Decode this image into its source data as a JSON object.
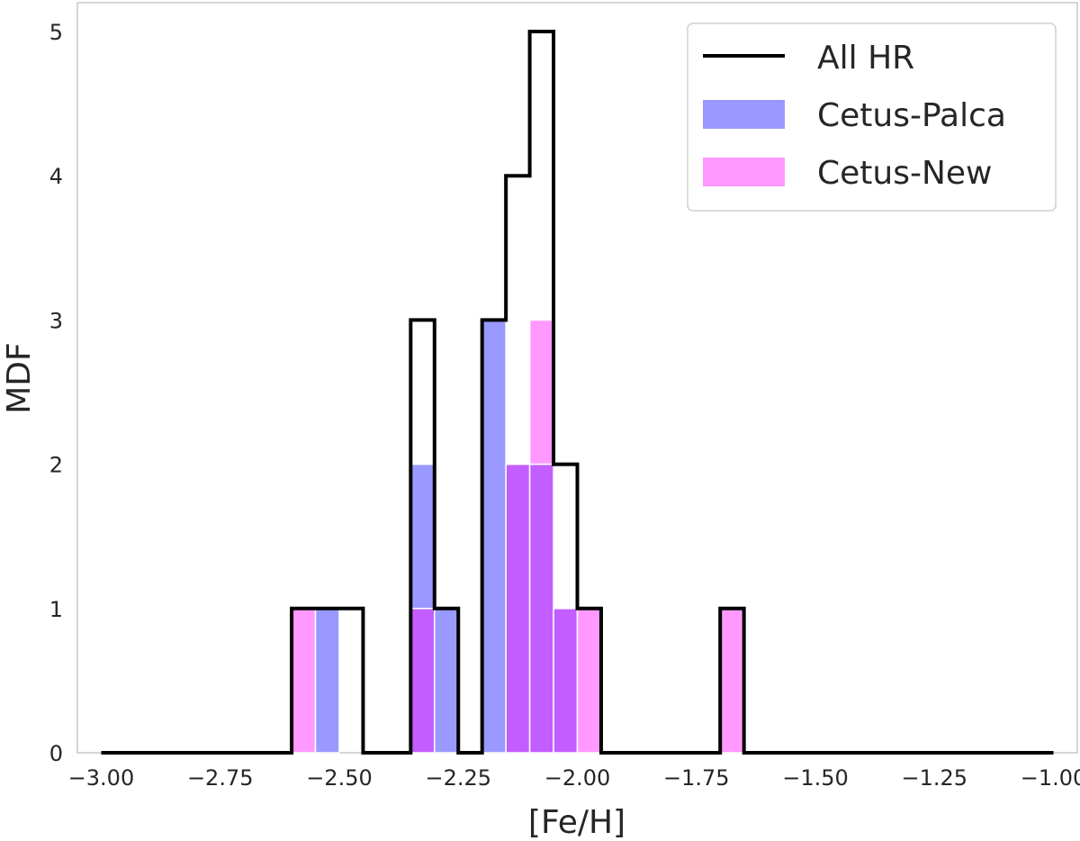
{
  "chart_data": {
    "type": "bar",
    "xlabel": "[Fe/H]",
    "ylabel": "MDF",
    "xlim": [
      -3.05,
      -0.95
    ],
    "ylim": [
      0,
      5.2
    ],
    "grid": false,
    "legend_position": "top-right",
    "x_ticks": [
      -3.0,
      -2.75,
      -2.5,
      -2.25,
      -2.0,
      -1.75,
      -1.5,
      -1.25,
      -1.0
    ],
    "x_tick_labels": [
      "−3.00",
      "−2.75",
      "−2.50",
      "−2.25",
      "−2.00",
      "−1.75",
      "−1.50",
      "−1.25",
      "−1.00"
    ],
    "y_ticks": [
      0,
      1,
      2,
      3,
      4,
      5
    ],
    "y_tick_labels": [
      "0",
      "1",
      "2",
      "3",
      "4",
      "5"
    ],
    "bin_edges": [
      -3.0,
      -2.95,
      -2.9,
      -2.85,
      -2.8,
      -2.75,
      -2.7,
      -2.65,
      -2.6,
      -2.55,
      -2.5,
      -2.45,
      -2.4,
      -2.35,
      -2.3,
      -2.25,
      -2.2,
      -2.15,
      -2.1,
      -2.05,
      -2.0,
      -1.95,
      -1.9,
      -1.85,
      -1.8,
      -1.75,
      -1.7,
      -1.65,
      -1.6,
      -1.55,
      -1.5,
      -1.45,
      -1.4,
      -1.35,
      -1.3,
      -1.25,
      -1.2,
      -1.15,
      -1.1,
      -1.05,
      -1.0
    ],
    "series": [
      {
        "name": "All HR",
        "style": "step",
        "color": "#000000",
        "values": [
          0,
          0,
          0,
          0,
          0,
          0,
          0,
          0,
          1,
          1,
          1,
          0,
          0,
          3,
          1,
          0,
          3,
          4,
          5,
          2,
          1,
          0,
          0,
          0,
          0,
          0,
          1,
          0,
          0,
          0,
          0,
          0,
          0,
          0,
          0,
          0,
          0,
          0,
          0,
          0
        ]
      },
      {
        "name": "Cetus-Palca",
        "style": "bar",
        "color": "#9999ff",
        "values": [
          0,
          0,
          0,
          0,
          0,
          0,
          0,
          0,
          0,
          1,
          0,
          0,
          0,
          2,
          1,
          0,
          3,
          2,
          2,
          1,
          0,
          0,
          0,
          0,
          0,
          0,
          0,
          0,
          0,
          0,
          0,
          0,
          0,
          0,
          0,
          0,
          0,
          0,
          0,
          0
        ]
      },
      {
        "name": "Cetus-New",
        "style": "bar",
        "color": "#ff99ff",
        "values": [
          0,
          0,
          0,
          0,
          0,
          0,
          0,
          0,
          1,
          0,
          0,
          0,
          0,
          1,
          0,
          0,
          0,
          2,
          3,
          1,
          1,
          0,
          0,
          0,
          0,
          0,
          1,
          0,
          0,
          0,
          0,
          0,
          0,
          0,
          0,
          0,
          0,
          0,
          0,
          0
        ]
      }
    ],
    "overlap_color": "#c45dff"
  }
}
